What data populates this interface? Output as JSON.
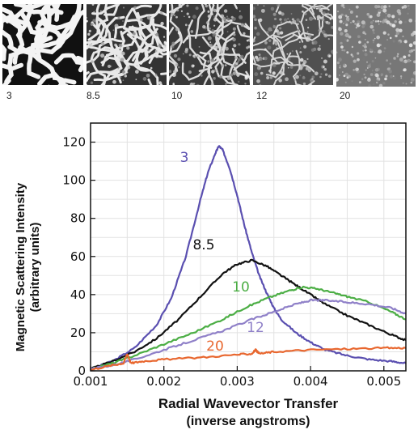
{
  "thumbnails": [
    {
      "label": "3"
    },
    {
      "label": "8.5"
    },
    {
      "label": "10"
    },
    {
      "label": "12"
    },
    {
      "label": "20"
    }
  ],
  "chart_data": {
    "type": "line",
    "xlabel_line1": "Radial Wavevector Transfer",
    "xlabel_line2": "(inverse angstroms)",
    "ylabel_line1": "Magnetic Scattering Intensity",
    "ylabel_line2": "(arbitrary units)",
    "xlim": [
      0.001,
      0.0053
    ],
    "ylim": [
      0,
      130
    ],
    "xticks": [
      0.001,
      0.002,
      0.003,
      0.004,
      0.005
    ],
    "xtick_labels": [
      "0.001",
      "0.002",
      "0.003",
      "0.004",
      "0.005"
    ],
    "yticks": [
      0,
      20,
      40,
      60,
      80,
      100,
      120
    ],
    "ytick_labels": [
      "0",
      "20",
      "40",
      "60",
      "80",
      "100",
      "120"
    ],
    "grid": true,
    "series": [
      {
        "name": "3",
        "color": "#5a4fb0",
        "x": [
          0.001,
          0.0013,
          0.0016,
          0.0019,
          0.0021,
          0.0023,
          0.0025,
          0.0026,
          0.0027,
          0.00275,
          0.0028,
          0.0029,
          0.003,
          0.0031,
          0.0032,
          0.0033,
          0.0034,
          0.0035,
          0.0036,
          0.0038,
          0.004,
          0.0042,
          0.0045,
          0.0048,
          0.0051,
          0.0053
        ],
        "y": [
          1,
          5,
          12,
          24,
          38,
          60,
          90,
          104,
          114,
          118,
          116,
          106,
          92,
          76,
          62,
          50,
          41,
          33,
          27,
          20,
          15,
          11,
          8,
          6,
          5,
          4
        ]
      },
      {
        "name": "8.5",
        "color": "#111111",
        "x": [
          0.001,
          0.0013,
          0.0016,
          0.0019,
          0.0022,
          0.0025,
          0.0028,
          0.003,
          0.0032,
          0.0034,
          0.0036,
          0.0038,
          0.004,
          0.0042,
          0.0045,
          0.0048,
          0.0051,
          0.0053
        ],
        "y": [
          1,
          5,
          10,
          17,
          27,
          39,
          51,
          56,
          58,
          55,
          50,
          45,
          40,
          35,
          29,
          24,
          19,
          16
        ]
      },
      {
        "name": "10",
        "color": "#4cae45",
        "x": [
          0.001,
          0.0013,
          0.0016,
          0.002,
          0.0024,
          0.0028,
          0.0031,
          0.0034,
          0.0037,
          0.0039,
          0.0041,
          0.0043,
          0.0045,
          0.0048,
          0.0051,
          0.0053
        ],
        "y": [
          1,
          4,
          8,
          14,
          20,
          27,
          33,
          38,
          42,
          44,
          43,
          41,
          39,
          36,
          31,
          27
        ]
      },
      {
        "name": "12",
        "color": "#8f80c8",
        "x": [
          0.001,
          0.0013,
          0.0016,
          0.002,
          0.0024,
          0.0028,
          0.0032,
          0.0035,
          0.0038,
          0.004,
          0.0042,
          0.0045,
          0.0048,
          0.0051,
          0.0053
        ],
        "y": [
          1,
          3,
          6,
          11,
          16,
          21,
          27,
          31,
          35,
          37,
          37,
          36,
          35,
          33,
          30
        ]
      },
      {
        "name": "20",
        "color": "#e8672f",
        "x": [
          0.001,
          0.0013,
          0.00145,
          0.0015,
          0.00155,
          0.0017,
          0.002,
          0.0025,
          0.003,
          0.0032,
          0.00325,
          0.0033,
          0.0035,
          0.004,
          0.0045,
          0.005,
          0.0053
        ],
        "y": [
          0.5,
          3,
          4,
          9,
          4,
          5,
          6,
          7,
          8.5,
          9,
          11,
          9,
          10,
          11,
          11.5,
          12,
          12
        ]
      }
    ]
  }
}
